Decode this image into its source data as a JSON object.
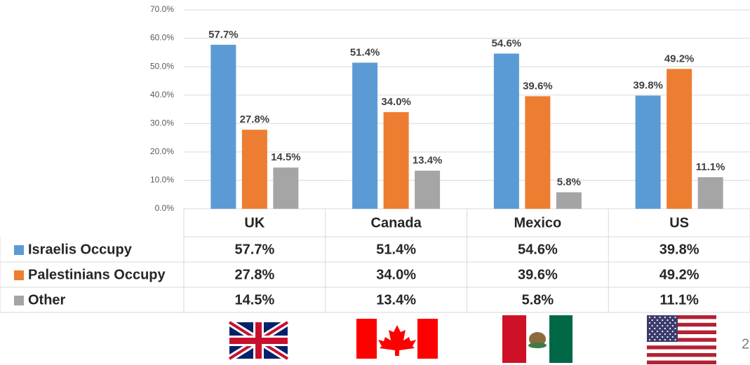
{
  "chart_data": {
    "type": "bar",
    "categories": [
      "UK",
      "Canada",
      "Mexico",
      "US"
    ],
    "series": [
      {
        "name": "Israelis Occupy",
        "color": "#5b9bd5",
        "values": [
          57.7,
          51.4,
          54.6,
          39.8
        ],
        "value_labels": [
          "57.7%",
          "51.4%",
          "54.6%",
          "39.8%"
        ]
      },
      {
        "name": "Palestinians Occupy",
        "color": "#ed7d31",
        "values": [
          27.8,
          34.0,
          39.6,
          49.2
        ],
        "value_labels": [
          "27.8%",
          "34.0%",
          "39.6%",
          "49.2%"
        ]
      },
      {
        "name": "Other",
        "color": "#a5a5a5",
        "values": [
          14.5,
          13.4,
          5.8,
          11.1
        ],
        "value_labels": [
          "14.5%",
          "13.4%",
          "5.8%",
          "11.1%"
        ]
      }
    ],
    "ylim": [
      0,
      70
    ],
    "yticks": [
      {
        "value": 0,
        "label": "0.0%"
      },
      {
        "value": 10,
        "label": "10.0%"
      },
      {
        "value": 20,
        "label": "20.0%"
      },
      {
        "value": 30,
        "label": "30.0%"
      },
      {
        "value": 40,
        "label": "40.0%"
      },
      {
        "value": 50,
        "label": "50.0%"
      },
      {
        "value": 60,
        "label": "60.0%"
      },
      {
        "value": 70,
        "label": "70.0%"
      }
    ],
    "grid": true,
    "data_table": true
  },
  "slide_number": "2"
}
